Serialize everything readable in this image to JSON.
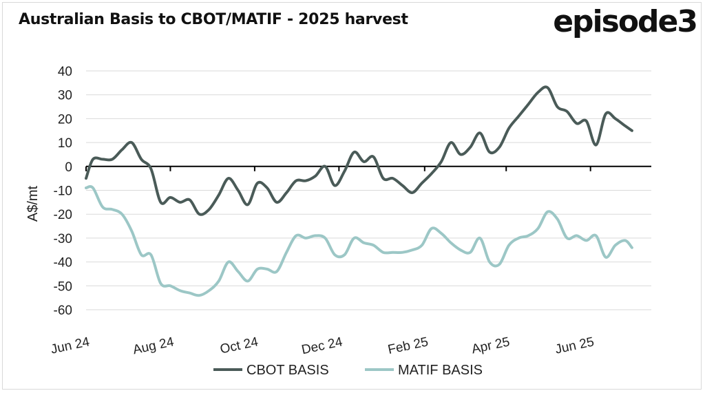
{
  "header": {
    "title": "Australian Basis to CBOT/MATIF - 2025 harvest",
    "logo": "episode3"
  },
  "chart_data": {
    "type": "line",
    "title": "Australian Basis to CBOT/MATIF - 2025 harvest",
    "ylabel": "A$/mt",
    "xlabel": "",
    "ylim": [
      -60,
      40
    ],
    "yticks": [
      40,
      30,
      20,
      10,
      0,
      -10,
      -20,
      -30,
      -40,
      -50,
      -60
    ],
    "xlim": [
      "2024-06-01",
      "2025-07-15"
    ],
    "xticks": [
      {
        "label": "Jun 24",
        "date": "2024-06-01"
      },
      {
        "label": "Aug 24",
        "date": "2024-08-01"
      },
      {
        "label": "Oct 24",
        "date": "2024-10-01"
      },
      {
        "label": "Dec 24",
        "date": "2024-12-01"
      },
      {
        "label": "Feb 25",
        "date": "2025-02-01"
      },
      {
        "label": "Apr 25",
        "date": "2025-04-01"
      },
      {
        "label": "Jun 25",
        "date": "2025-06-01"
      }
    ],
    "grid": true,
    "legend_position": "bottom",
    "series": [
      {
        "name": "CBOT BASIS",
        "color": "#4a5b58",
        "points": [
          [
            "2024-06-01",
            -5
          ],
          [
            "2024-06-06",
            3
          ],
          [
            "2024-06-13",
            3
          ],
          [
            "2024-06-20",
            3
          ],
          [
            "2024-06-27",
            7
          ],
          [
            "2024-07-04",
            10
          ],
          [
            "2024-07-11",
            3
          ],
          [
            "2024-07-18",
            -1
          ],
          [
            "2024-07-25",
            -15
          ],
          [
            "2024-08-01",
            -13
          ],
          [
            "2024-08-08",
            -15
          ],
          [
            "2024-08-15",
            -14
          ],
          [
            "2024-08-22",
            -20
          ],
          [
            "2024-08-29",
            -18
          ],
          [
            "2024-09-05",
            -12
          ],
          [
            "2024-09-12",
            -5
          ],
          [
            "2024-09-19",
            -10
          ],
          [
            "2024-09-26",
            -16
          ],
          [
            "2024-10-03",
            -7
          ],
          [
            "2024-10-10",
            -9
          ],
          [
            "2024-10-17",
            -15
          ],
          [
            "2024-10-24",
            -11
          ],
          [
            "2024-10-31",
            -6
          ],
          [
            "2024-11-07",
            -6
          ],
          [
            "2024-11-14",
            -4
          ],
          [
            "2024-11-21",
            0
          ],
          [
            "2024-11-28",
            -8
          ],
          [
            "2024-12-05",
            -2
          ],
          [
            "2024-12-12",
            6
          ],
          [
            "2024-12-19",
            2
          ],
          [
            "2024-12-26",
            4
          ],
          [
            "2025-01-02",
            -5
          ],
          [
            "2025-01-09",
            -5
          ],
          [
            "2025-01-16",
            -8
          ],
          [
            "2025-01-23",
            -11
          ],
          [
            "2025-01-30",
            -7
          ],
          [
            "2025-02-06",
            -3
          ],
          [
            "2025-02-13",
            2
          ],
          [
            "2025-02-20",
            10
          ],
          [
            "2025-02-27",
            5
          ],
          [
            "2025-03-06",
            8
          ],
          [
            "2025-03-13",
            14
          ],
          [
            "2025-03-20",
            6
          ],
          [
            "2025-03-27",
            8
          ],
          [
            "2025-04-03",
            16
          ],
          [
            "2025-04-10",
            21
          ],
          [
            "2025-04-17",
            26
          ],
          [
            "2025-04-24",
            31
          ],
          [
            "2025-05-01",
            33
          ],
          [
            "2025-05-08",
            25
          ],
          [
            "2025-05-15",
            23
          ],
          [
            "2025-05-22",
            18
          ],
          [
            "2025-05-29",
            19
          ],
          [
            "2025-06-05",
            9
          ],
          [
            "2025-06-12",
            22
          ],
          [
            "2025-06-19",
            20
          ],
          [
            "2025-06-26",
            17
          ],
          [
            "2025-07-01",
            15
          ]
        ]
      },
      {
        "name": "MATIF BASIS",
        "color": "#9cc7c6",
        "points": [
          [
            "2024-06-01",
            -9
          ],
          [
            "2024-06-06",
            -9
          ],
          [
            "2024-06-13",
            -17
          ],
          [
            "2024-06-20",
            -18
          ],
          [
            "2024-06-27",
            -20
          ],
          [
            "2024-07-04",
            -27
          ],
          [
            "2024-07-11",
            -37
          ],
          [
            "2024-07-18",
            -37
          ],
          [
            "2024-07-25",
            -49
          ],
          [
            "2024-08-01",
            -50
          ],
          [
            "2024-08-08",
            -52
          ],
          [
            "2024-08-15",
            -53
          ],
          [
            "2024-08-22",
            -54
          ],
          [
            "2024-08-29",
            -52
          ],
          [
            "2024-09-05",
            -48
          ],
          [
            "2024-09-12",
            -40
          ],
          [
            "2024-09-19",
            -44
          ],
          [
            "2024-09-26",
            -48
          ],
          [
            "2024-10-03",
            -43
          ],
          [
            "2024-10-10",
            -43
          ],
          [
            "2024-10-17",
            -44
          ],
          [
            "2024-10-24",
            -36
          ],
          [
            "2024-10-31",
            -29
          ],
          [
            "2024-11-07",
            -30
          ],
          [
            "2024-11-14",
            -29
          ],
          [
            "2024-11-21",
            -30
          ],
          [
            "2024-11-28",
            -37
          ],
          [
            "2024-12-05",
            -37
          ],
          [
            "2024-12-12",
            -30
          ],
          [
            "2024-12-19",
            -32
          ],
          [
            "2024-12-26",
            -33
          ],
          [
            "2025-01-02",
            -36
          ],
          [
            "2025-01-09",
            -36
          ],
          [
            "2025-01-16",
            -36
          ],
          [
            "2025-01-23",
            -35
          ],
          [
            "2025-01-30",
            -33
          ],
          [
            "2025-02-06",
            -26
          ],
          [
            "2025-02-13",
            -28
          ],
          [
            "2025-02-20",
            -32
          ],
          [
            "2025-02-27",
            -35
          ],
          [
            "2025-03-06",
            -36
          ],
          [
            "2025-03-13",
            -30
          ],
          [
            "2025-03-20",
            -40
          ],
          [
            "2025-03-27",
            -41
          ],
          [
            "2025-04-03",
            -33
          ],
          [
            "2025-04-10",
            -30
          ],
          [
            "2025-04-17",
            -29
          ],
          [
            "2025-04-24",
            -26
          ],
          [
            "2025-05-01",
            -19
          ],
          [
            "2025-05-08",
            -22
          ],
          [
            "2025-05-15",
            -30
          ],
          [
            "2025-05-22",
            -29
          ],
          [
            "2025-05-29",
            -31
          ],
          [
            "2025-06-05",
            -29
          ],
          [
            "2025-06-12",
            -38
          ],
          [
            "2025-06-19",
            -33
          ],
          [
            "2025-06-26",
            -31
          ],
          [
            "2025-07-01",
            -34
          ]
        ]
      }
    ]
  }
}
